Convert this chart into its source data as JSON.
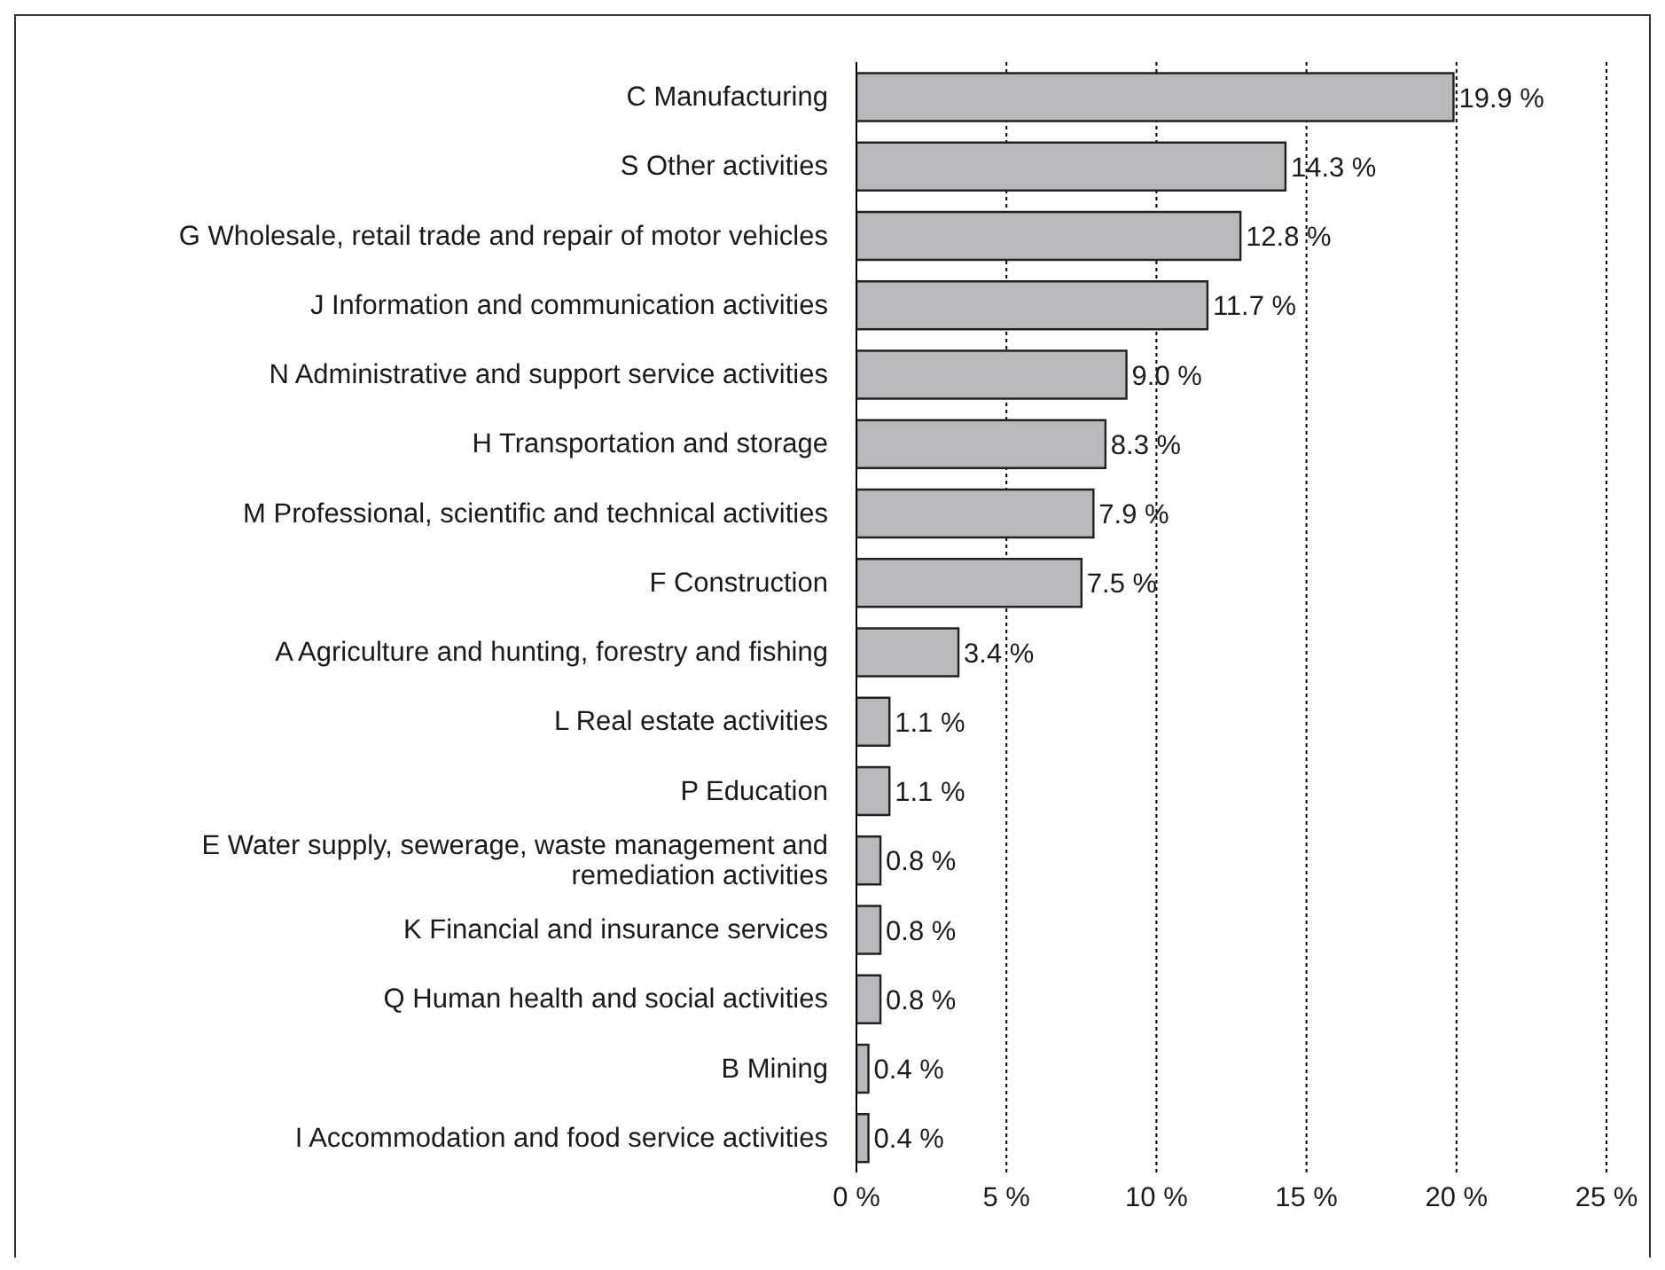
{
  "chart_data": {
    "type": "bar",
    "orientation": "horizontal",
    "categories": [
      "C Manufacturing",
      "S Other activities",
      "G Wholesale, retail trade and repair of motor vehicles",
      "J Information and communication activities",
      "N Administrative and support service activities",
      "H Transportation and storage",
      "M Professional, scientific and technical activities",
      "F Construction",
      "A Agriculture and hunting, forestry and fishing",
      "L Real estate activities",
      "P Education",
      "E Water supply, sewerage, waste management and remediation activities",
      "K Financial and insurance services",
      "Q Human health and social activities",
      "B Mining",
      "I Accommodation and food service activities"
    ],
    "values": [
      19.9,
      14.3,
      12.8,
      11.7,
      9.0,
      8.3,
      7.9,
      7.5,
      3.4,
      1.1,
      1.1,
      0.8,
      0.8,
      0.8,
      0.4,
      0.4
    ],
    "value_labels": [
      "19.9 %",
      "14.3 %",
      "12.8 %",
      "11.7 %",
      "9.0 %",
      "8.3 %",
      "7.9 %",
      "7.5 %",
      "3.4 %",
      "1.1 %",
      "1.1 %",
      "0.8 %",
      "0.8 %",
      "0.8 %",
      "0.4 %",
      "0.4 %"
    ],
    "color": "#b9b9bd",
    "xlim": [
      0,
      25
    ],
    "xticks": [
      {
        "value": 0,
        "label": "0 %"
      },
      {
        "value": 5,
        "label": "5 %"
      },
      {
        "value": 10,
        "label": "10 %"
      },
      {
        "value": 15,
        "label": "15 %"
      },
      {
        "value": 20,
        "label": "20 %"
      },
      {
        "value": 25,
        "label": "25 %"
      }
    ],
    "grid": "x",
    "legend": false
  }
}
